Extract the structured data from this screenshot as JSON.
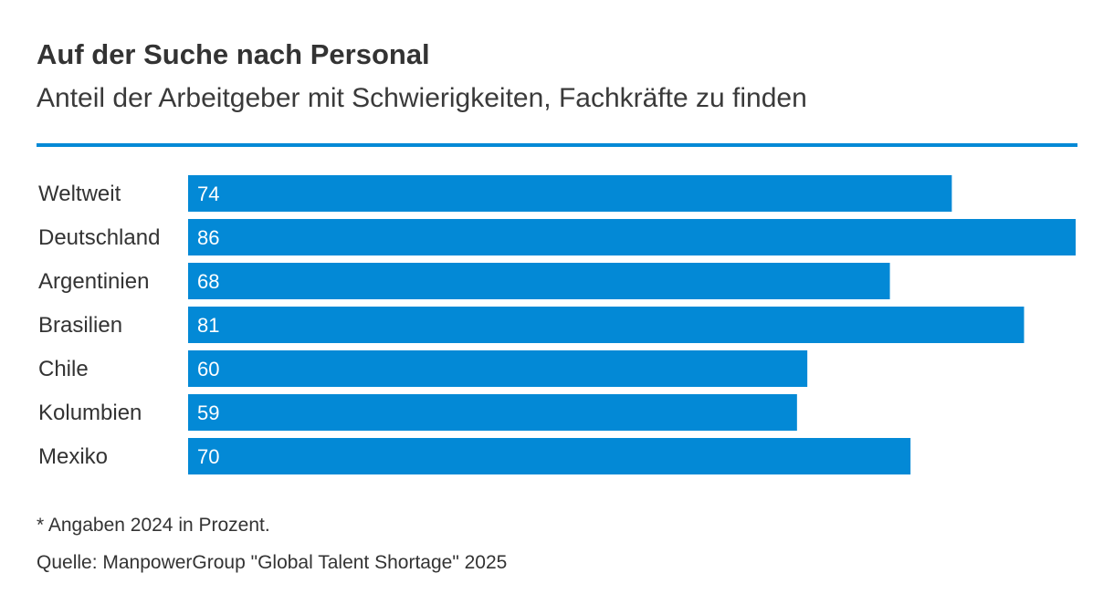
{
  "colors": {
    "accent": "#0389d6",
    "text": "#333333",
    "bar_label": "#ffffff"
  },
  "header": {
    "title": "Auf der Suche nach Personal",
    "subtitle": "Anteil der Arbeitgeber mit Schwierigkeiten, Fachkräfte zu finden"
  },
  "chart_data": {
    "type": "bar",
    "orientation": "horizontal",
    "categories": [
      "Weltweit",
      "Deutschland",
      "Argentinien",
      "Brasilien",
      "Chile",
      "Kolumbien",
      "Mexiko"
    ],
    "values": [
      74,
      86,
      68,
      81,
      60,
      59,
      70
    ],
    "data_labels": [
      "74",
      "86",
      "68",
      "81",
      "60",
      "59",
      "70"
    ],
    "xlim": [
      0,
      86
    ],
    "grid": false,
    "legend": "none"
  },
  "footer": {
    "note": "* Angaben 2024 in Prozent.",
    "source": "Quelle: ManpowerGroup \"Global Talent Shortage\" 2025"
  }
}
